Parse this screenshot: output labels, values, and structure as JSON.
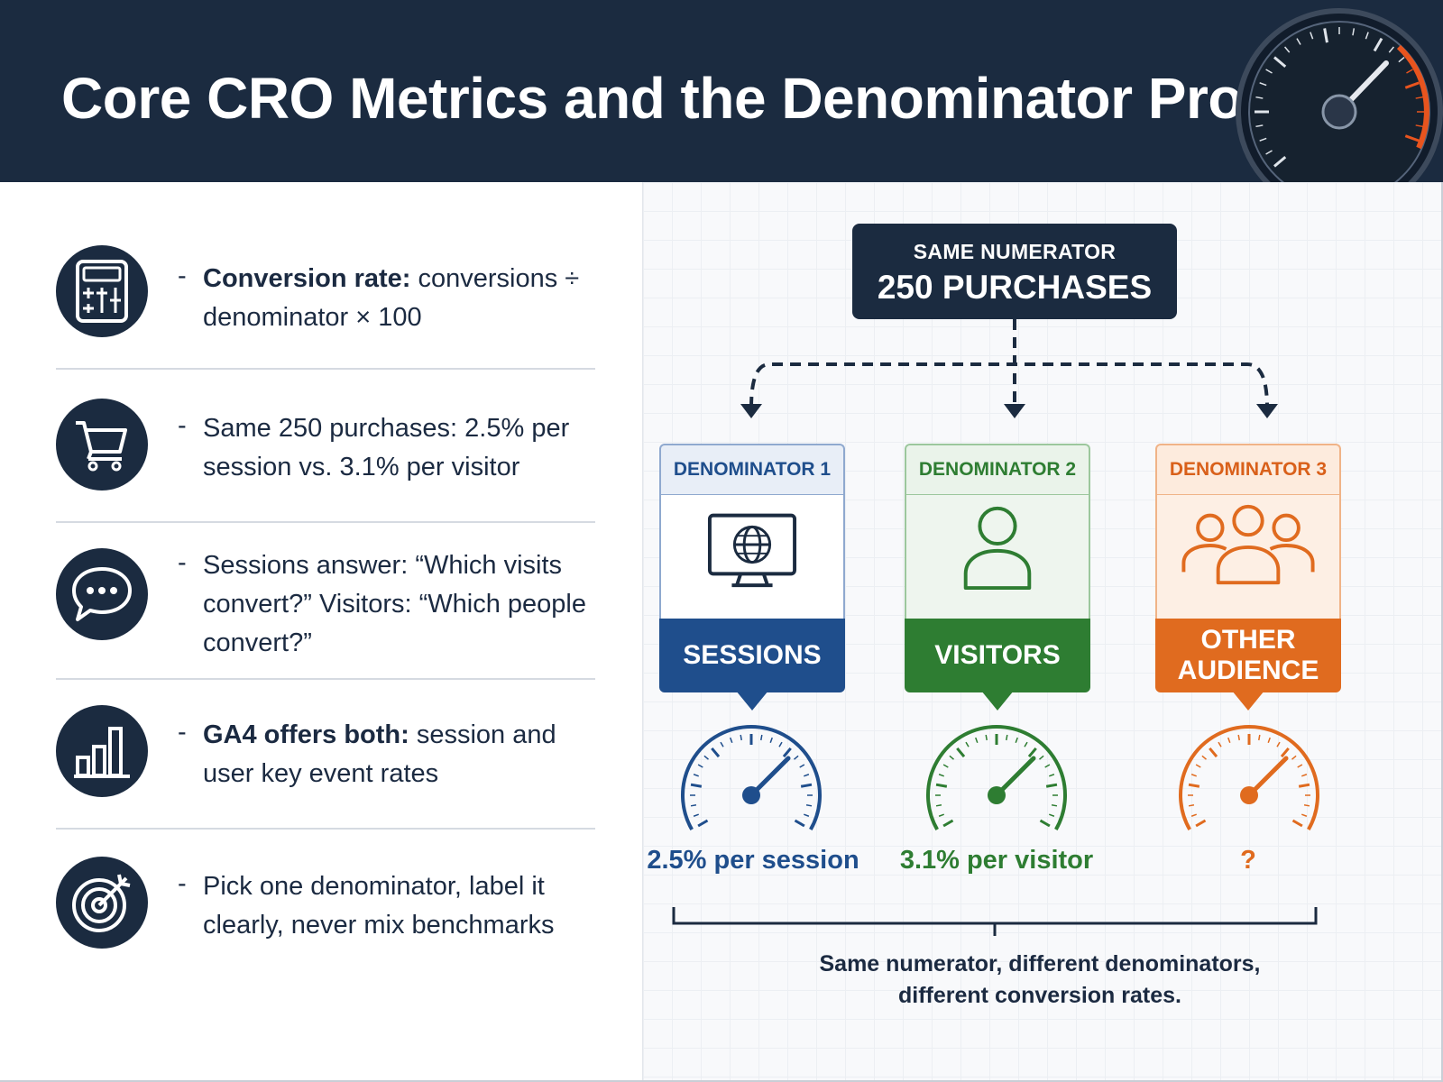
{
  "header": {
    "title": "Core CRO Metrics and the Denominator Problem"
  },
  "left_items": [
    {
      "icon": "calculator-icon",
      "bold": "Conversion rate:",
      "text": " conversions ÷ denominator × 100"
    },
    {
      "icon": "shopping-cart-icon",
      "bold": "",
      "text": "Same 250 purchases: 2.5% per session vs. 3.1% per visitor"
    },
    {
      "icon": "chat-bubble-icon",
      "bold": "",
      "text": "Sessions answer: “Which visits convert?” Visitors: “Which people convert?”"
    },
    {
      "icon": "bar-chart-icon",
      "bold": "GA4 offers both:",
      "text": " session and user key event rates"
    },
    {
      "icon": "target-icon",
      "bold": "",
      "text": "Pick one denominator, label it clearly, never mix benchmarks"
    }
  ],
  "numerator": {
    "label": "SAME NUMERATOR",
    "value": "250 PURCHASES"
  },
  "denominators": [
    {
      "head": "DENOMINATOR 1",
      "name": "SESSIONS",
      "icon": "monitor-globe-icon",
      "rate": "2.5% per session",
      "color": "#1f4e8c",
      "light": "#e8eef7",
      "border": "#8fa9cf"
    },
    {
      "head": "DENOMINATOR 2",
      "name": "VISITORS",
      "icon": "person-icon",
      "rate": "3.1% per visitor",
      "color": "#2e7d32",
      "light": "#eaf3ea",
      "border": "#9cc79d"
    },
    {
      "head": "DENOMINATOR 3",
      "name": "OTHER AUDIENCE",
      "icon": "group-icon",
      "rate": "?",
      "color": "#e06b1f",
      "light": "#fdebdd",
      "border": "#f0b387"
    }
  ],
  "caption": {
    "line1": "Same numerator, different denominators,",
    "line2": "different conversion rates."
  },
  "colors": {
    "navy": "#1b2b40",
    "orange_accent": "#e8541e"
  }
}
